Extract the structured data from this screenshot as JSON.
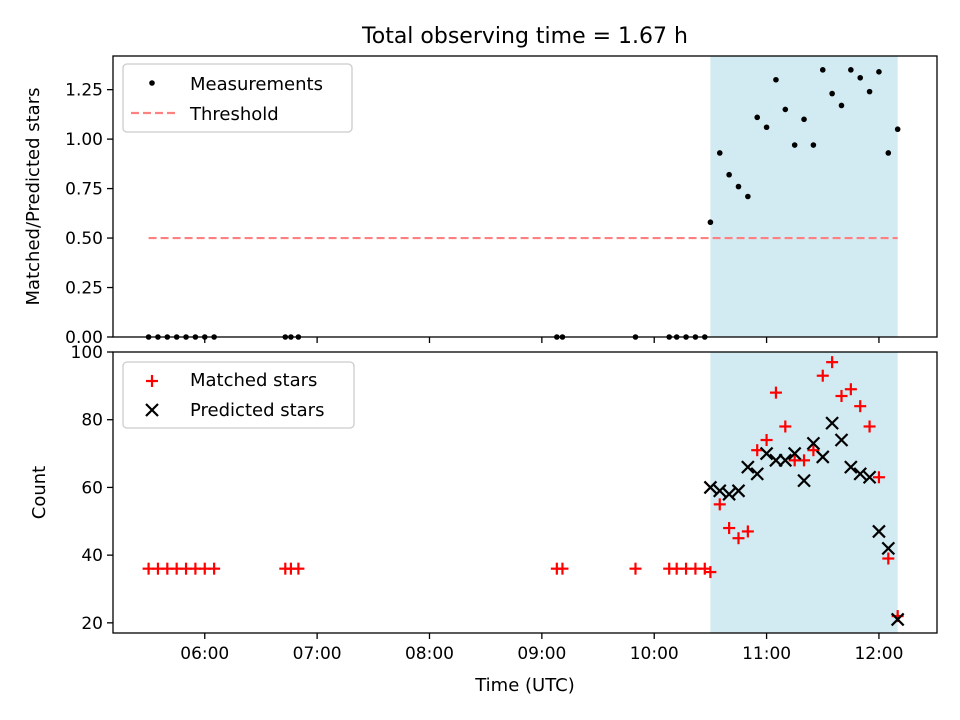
{
  "chart_data": [
    {
      "type": "scatter",
      "title": "Total observing time = 1.67 h",
      "xlabel": "",
      "ylabel": "Matched/Predicted stars",
      "xlim": [
        "05:11",
        "12:31"
      ],
      "ylim": [
        0,
        1.42
      ],
      "yticks": [
        "0.00",
        "0.25",
        "0.50",
        "0.75",
        "1.00",
        "1.25"
      ],
      "ytick_values": [
        0,
        0.25,
        0.5,
        0.75,
        1.0,
        1.25
      ],
      "legend_location": "upper-left",
      "legend": [
        "Measurements",
        "Threshold"
      ],
      "shaded_region": {
        "start": "10:30",
        "end": "12:10",
        "color": "#add8e6"
      },
      "series": [
        {
          "name": "Measurements",
          "marker": "dot",
          "color": "#000000",
          "x": [
            "05:30",
            "05:35",
            "05:40",
            "05:45",
            "05:50",
            "05:55",
            "06:00",
            "06:05",
            "06:43",
            "06:46",
            "06:50",
            "09:08",
            "09:11",
            "09:50",
            "10:08",
            "10:12",
            "10:17",
            "10:22",
            "10:27",
            "10:30",
            "10:35",
            "10:40",
            "10:45",
            "10:50",
            "10:55",
            "11:00",
            "11:05",
            "11:10",
            "11:15",
            "11:20",
            "11:25",
            "11:30",
            "11:35",
            "11:40",
            "11:45",
            "11:50",
            "11:55",
            "12:00",
            "12:05",
            "12:10"
          ],
          "y": [
            0,
            0,
            0,
            0,
            0,
            0,
            0,
            0,
            0,
            0,
            0,
            0,
            0,
            0,
            0,
            0,
            0,
            0,
            0,
            0.58,
            0.93,
            0.82,
            0.76,
            0.71,
            1.11,
            1.06,
            1.3,
            1.15,
            0.97,
            1.1,
            0.97,
            1.35,
            1.23,
            1.17,
            1.35,
            1.31,
            1.24,
            1.34,
            0.93,
            1.05
          ]
        },
        {
          "name": "Threshold",
          "marker": "dashed-line",
          "color": "#ff8080",
          "x": [
            "05:30",
            "12:10"
          ],
          "y": [
            0.5,
            0.5
          ]
        }
      ]
    },
    {
      "type": "scatter",
      "title": "",
      "xlabel": "Time (UTC)",
      "ylabel": "Count",
      "xlim": [
        "05:11",
        "12:31"
      ],
      "ylim": [
        17,
        100
      ],
      "yticks": [
        "20",
        "40",
        "60",
        "80",
        "100"
      ],
      "ytick_values": [
        20,
        40,
        60,
        80,
        100
      ],
      "xticks": [
        "06:00",
        "07:00",
        "08:00",
        "09:00",
        "10:00",
        "11:00",
        "12:00"
      ],
      "legend_location": "upper-left",
      "legend": [
        "Matched stars",
        "Predicted stars"
      ],
      "shaded_region": {
        "start": "10:30",
        "end": "12:10",
        "color": "#add8e6"
      },
      "series": [
        {
          "name": "Matched stars",
          "marker": "plus",
          "color": "#ff0000",
          "x": [
            "05:30",
            "05:35",
            "05:40",
            "05:45",
            "05:50",
            "05:55",
            "06:00",
            "06:05",
            "06:43",
            "06:46",
            "06:50",
            "09:08",
            "09:11",
            "09:50",
            "10:08",
            "10:12",
            "10:17",
            "10:22",
            "10:27",
            "10:30",
            "10:35",
            "10:40",
            "10:45",
            "10:50",
            "10:55",
            "11:00",
            "11:05",
            "11:10",
            "11:15",
            "11:20",
            "11:25",
            "11:30",
            "11:35",
            "11:40",
            "11:45",
            "11:50",
            "11:55",
            "12:00",
            "12:05",
            "12:10"
          ],
          "y": [
            36,
            36,
            36,
            36,
            36,
            36,
            36,
            36,
            36,
            36,
            36,
            36,
            36,
            36,
            36,
            36,
            36,
            36,
            36,
            35,
            55,
            48,
            45,
            47,
            71,
            74,
            88,
            78,
            68,
            68,
            71,
            93,
            97,
            87,
            89,
            84,
            78,
            63,
            39,
            22
          ]
        },
        {
          "name": "Predicted stars",
          "marker": "x",
          "color": "#000000",
          "x": [
            "10:30",
            "10:35",
            "10:40",
            "10:45",
            "10:50",
            "10:55",
            "11:00",
            "11:05",
            "11:10",
            "11:15",
            "11:20",
            "11:25",
            "11:30",
            "11:35",
            "11:40",
            "11:45",
            "11:50",
            "11:55",
            "12:00",
            "12:05",
            "12:10"
          ],
          "y": [
            60,
            59,
            58,
            59,
            66,
            64,
            70,
            68,
            68,
            70,
            62,
            73,
            69,
            79,
            74,
            66,
            64,
            63,
            47,
            42,
            21
          ]
        }
      ]
    }
  ]
}
